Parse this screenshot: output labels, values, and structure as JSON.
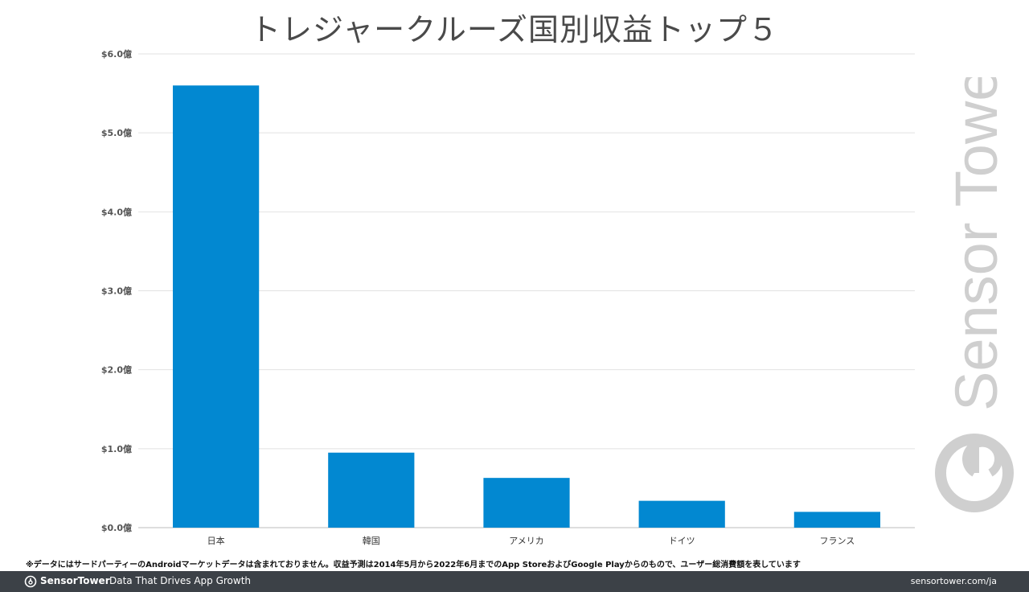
{
  "chart_data": {
    "type": "bar",
    "title": "トレジャークルーズ国別収益トップ５",
    "categories": [
      "日本",
      "韓国",
      "アメリカ",
      "ドイツ",
      "フランス"
    ],
    "values": [
      5.6,
      0.95,
      0.63,
      0.34,
      0.2
    ],
    "ytick_labels": [
      "$0.0億",
      "$1.0億",
      "$2.0億",
      "$3.0億",
      "$4.0億",
      "$5.0億",
      "$6.0億"
    ],
    "ylim": [
      0,
      6
    ],
    "xlabel": "",
    "ylabel": "",
    "grid": true,
    "bar_color": "#0288d1"
  },
  "watermark": {
    "brand_text": "Sensor Tower",
    "color": "#cfcfcf"
  },
  "footnote": "※データにはサードパーティーのAndroidマーケットデータは含まれておりません。収益予測は2014年5月から2022年6月までのApp StoreおよびGoogle Playからのもので、ユーザー総消費額を表しています",
  "footer": {
    "brand": "SensorTower",
    "tagline": "Data That Drives App Growth",
    "url": "sensortower.com/ja",
    "background": "#3c4147"
  }
}
